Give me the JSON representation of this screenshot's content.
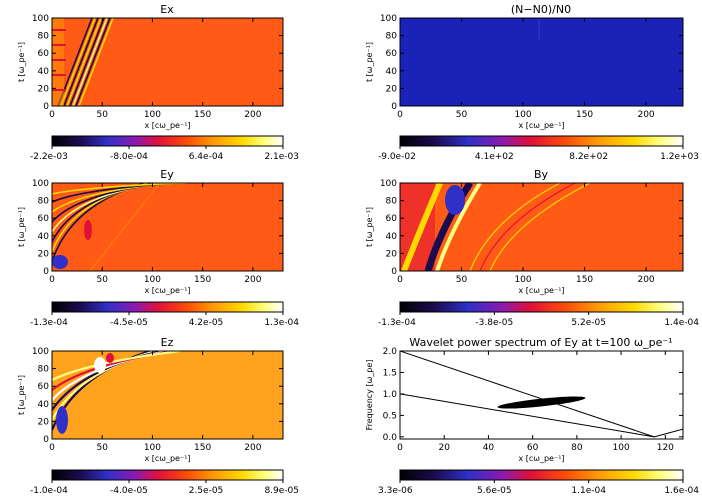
{
  "chart_data": [
    {
      "type": "heatmap",
      "title": "Ex",
      "xlabel": "x [cω_pe⁻¹]",
      "ylabel": "t [ω_pe⁻¹]",
      "xlim": [
        0,
        230
      ],
      "ylim": [
        0,
        100
      ],
      "xticks": [
        0,
        50,
        100,
        150,
        200
      ],
      "yticks": [
        0,
        20,
        40,
        60,
        80,
        100
      ],
      "colorbar": {
        "ticks": [
          "-2.2e-03",
          "-8.0e-04",
          "6.4e-04",
          "2.1e-03"
        ],
        "range": [
          -0.0022,
          0.0021
        ]
      },
      "background_level": 0.0
    },
    {
      "type": "heatmap",
      "title": "(N−N0)/N0",
      "xlabel": "x [cω_pe⁻¹]",
      "ylabel": "t [ω_pe⁻¹]",
      "xlim": [
        0,
        230
      ],
      "ylim": [
        0,
        100
      ],
      "xticks": [
        0,
        50,
        100,
        150,
        200
      ],
      "yticks": [
        0,
        20,
        40,
        60,
        80,
        100
      ],
      "colorbar": {
        "ticks": [
          "-9.0e-02",
          "4.1e+02",
          "8.2e+02",
          "1.2e+03"
        ],
        "range": [
          -0.09,
          1200
        ]
      },
      "background_level": 0.0
    },
    {
      "type": "heatmap",
      "title": "Ey",
      "xlabel": "x [cω_pe⁻¹]",
      "ylabel": "t [ω_pe⁻¹]",
      "xlim": [
        0,
        230
      ],
      "ylim": [
        0,
        100
      ],
      "xticks": [
        0,
        50,
        100,
        150,
        200
      ],
      "yticks": [
        0,
        20,
        40,
        60,
        80,
        100
      ],
      "colorbar": {
        "ticks": [
          "-1.3e-04",
          "-4.5e-05",
          "4.2e-05",
          "1.3e-04"
        ],
        "range": [
          -0.00013,
          0.00013
        ]
      },
      "background_level": 0.0
    },
    {
      "type": "heatmap",
      "title": "By",
      "xlabel": "x [cω_pe⁻¹]",
      "ylabel": "t [ω_pe⁻¹]",
      "xlim": [
        0,
        230
      ],
      "ylim": [
        0,
        100
      ],
      "xticks": [
        0,
        50,
        100,
        150,
        200
      ],
      "yticks": [
        0,
        20,
        40,
        60,
        80,
        100
      ],
      "colorbar": {
        "ticks": [
          "-1.3e-04",
          "-3.8e-05",
          "5.2e-05",
          "1.4e-04"
        ],
        "range": [
          -0.00013,
          0.00014
        ]
      },
      "background_level": 0.0
    },
    {
      "type": "heatmap",
      "title": "Ez",
      "xlabel": "x [cω_pe⁻¹]",
      "ylabel": "t [ω_pe⁻¹]",
      "xlim": [
        0,
        230
      ],
      "ylim": [
        0,
        100
      ],
      "xticks": [
        0,
        50,
        100,
        150,
        200
      ],
      "yticks": [
        0,
        20,
        40,
        60,
        80,
        100
      ],
      "colorbar": {
        "ticks": [
          "-1.0e-04",
          "-4.0e-05",
          "2.5e-05",
          "8.9e-05"
        ],
        "range": [
          -0.0001,
          8.9e-05
        ]
      },
      "background_level": 0.0
    },
    {
      "type": "heatmap",
      "title": "Wavelet power spectrum of Ey at t=100 ω_pe⁻¹",
      "xlabel": "x [cω_pe⁻¹]",
      "ylabel": "Frequency [ω_pe]",
      "xlim": [
        0,
        128
      ],
      "ylim": [
        -0.05,
        2.0
      ],
      "xticks": [
        0,
        20,
        40,
        60,
        80,
        100,
        120
      ],
      "yticks": [
        "0.0",
        "0.5",
        "1.0",
        "1.5",
        "2.0"
      ],
      "colorbar": {
        "ticks": [
          "3.3e-06",
          "5.6e-05",
          "1.1e-04",
          "1.6e-04"
        ],
        "range": [
          3.3e-06,
          0.00016
        ]
      },
      "lines": [
        {
          "x": [
            0,
            115
          ],
          "y": [
            2.0,
            0.0
          ]
        },
        {
          "x": [
            0,
            115
          ],
          "y": [
            1.0,
            0.0
          ]
        },
        {
          "x": [
            115,
            128
          ],
          "y": [
            0.0,
            0.18
          ]
        }
      ],
      "blob": {
        "x_center": 64,
        "y_center": 0.8,
        "x_halfwidth": 20,
        "y_halfwidth": 0.09
      }
    }
  ],
  "ui": {
    "panel_names": [
      "ex",
      "density",
      "ey",
      "by",
      "ez",
      "wavelet"
    ]
  }
}
